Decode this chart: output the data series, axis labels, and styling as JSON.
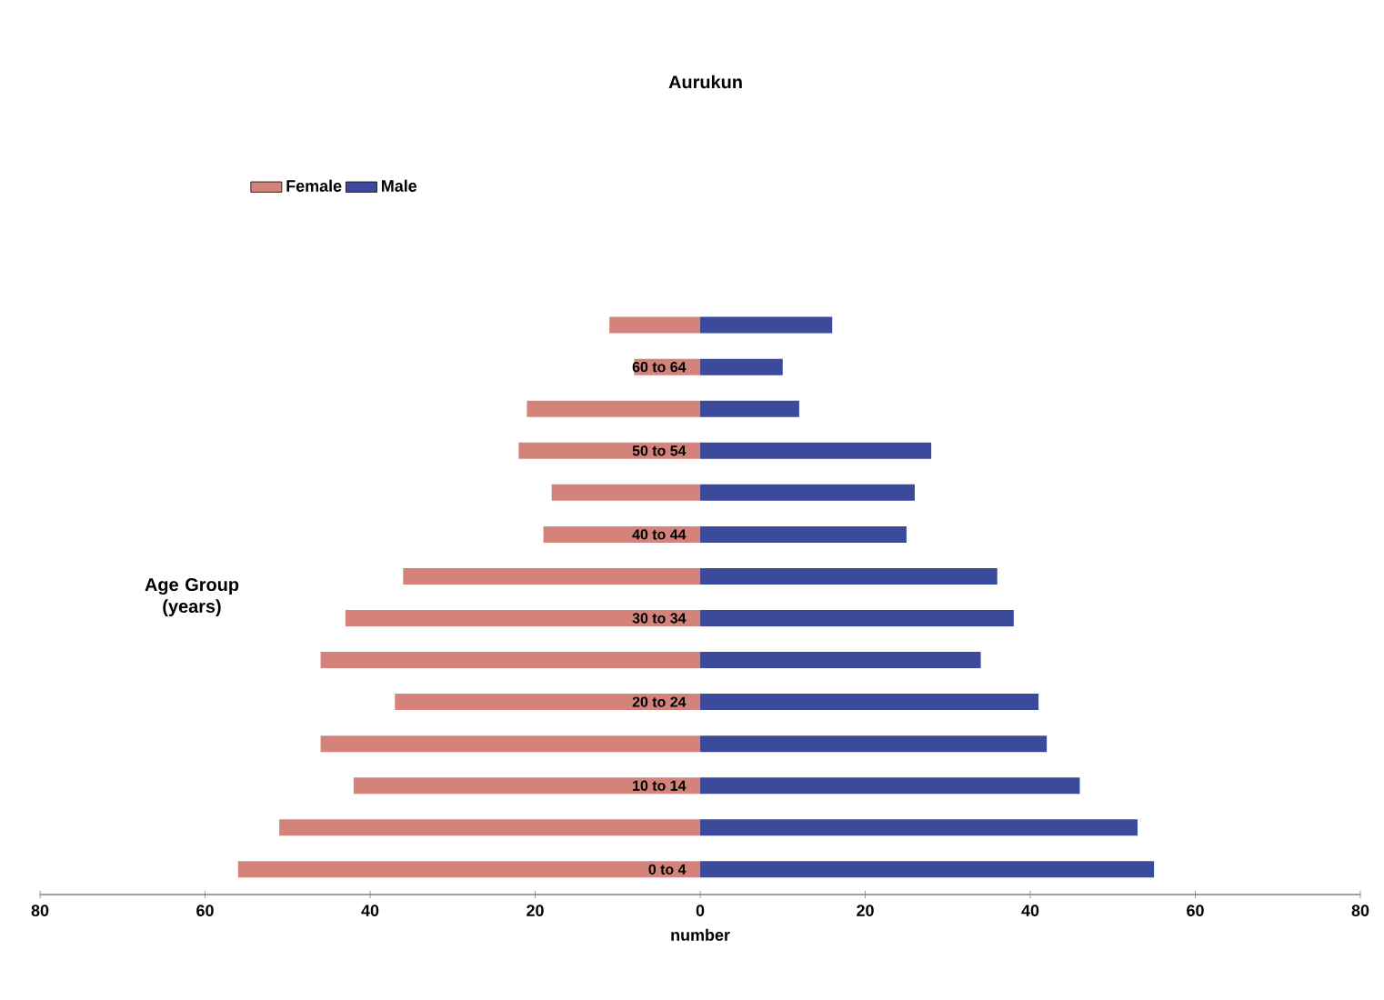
{
  "chart_data": {
    "type": "bar",
    "orientation": "horizontal",
    "title": "Aurukun",
    "xlabel": "number",
    "ylabel": "Age Group (years)",
    "categories": [
      null,
      "60 to 64",
      null,
      "50 to 54",
      null,
      "40 to 44",
      null,
      "30 to 34",
      null,
      "20 to 24",
      null,
      "10 to 14",
      null,
      "0 to 4"
    ],
    "series": [
      {
        "name": "Female",
        "color": "#d4837b",
        "values": [
          -11,
          -8,
          -21,
          -22,
          -18,
          -19,
          -36,
          -43,
          -46,
          -37,
          -46,
          -42,
          -51,
          -56
        ]
      },
      {
        "name": "Male",
        "color": "#3b4a9b",
        "values": [
          16,
          10,
          12,
          28,
          26,
          25,
          36,
          38,
          34,
          41,
          42,
          46,
          53,
          55
        ]
      }
    ],
    "xlim": [
      -80,
      80
    ],
    "xticks": [
      {
        "value": -80,
        "label": "80"
      },
      {
        "value": -60,
        "label": "60"
      },
      {
        "value": -40,
        "label": "40"
      },
      {
        "value": -20,
        "label": "20"
      },
      {
        "value": 0,
        "label": "0"
      },
      {
        "value": 20,
        "label": "20"
      },
      {
        "value": 40,
        "label": "40"
      },
      {
        "value": 60,
        "label": "60"
      },
      {
        "value": 80,
        "label": "80"
      }
    ],
    "stacked": true,
    "legend": "top left",
    "grid": false
  }
}
